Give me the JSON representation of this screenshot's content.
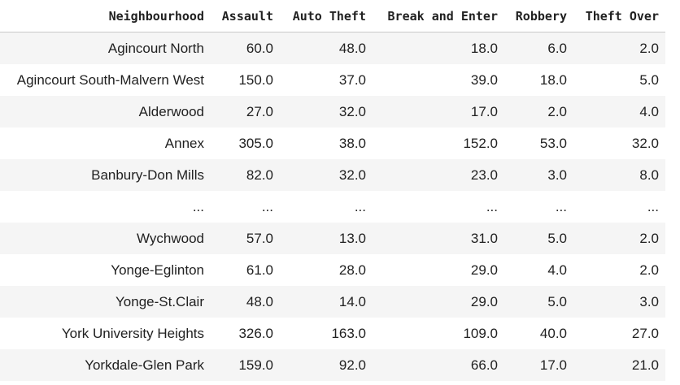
{
  "table": {
    "headers": [
      "Neighbourhood",
      "Assault",
      "Auto Theft",
      "Break and Enter",
      "Robbery",
      "Theft Over"
    ],
    "rows": [
      [
        "Agincourt North",
        "60.0",
        "48.0",
        "18.0",
        "6.0",
        "2.0"
      ],
      [
        "Agincourt South-Malvern West",
        "150.0",
        "37.0",
        "39.0",
        "18.0",
        "5.0"
      ],
      [
        "Alderwood",
        "27.0",
        "32.0",
        "17.0",
        "2.0",
        "4.0"
      ],
      [
        "Annex",
        "305.0",
        "38.0",
        "152.0",
        "53.0",
        "32.0"
      ],
      [
        "Banbury-Don Mills",
        "82.0",
        "32.0",
        "23.0",
        "3.0",
        "8.0"
      ],
      [
        "...",
        "...",
        "...",
        "...",
        "...",
        "..."
      ],
      [
        "Wychwood",
        "57.0",
        "13.0",
        "31.0",
        "5.0",
        "2.0"
      ],
      [
        "Yonge-Eglinton",
        "61.0",
        "28.0",
        "29.0",
        "4.0",
        "2.0"
      ],
      [
        "Yonge-St.Clair",
        "48.0",
        "14.0",
        "29.0",
        "5.0",
        "3.0"
      ],
      [
        "York University Heights",
        "326.0",
        "163.0",
        "109.0",
        "40.0",
        "27.0"
      ],
      [
        "Yorkdale-Glen Park",
        "159.0",
        "92.0",
        "66.0",
        "17.0",
        "21.0"
      ]
    ]
  }
}
